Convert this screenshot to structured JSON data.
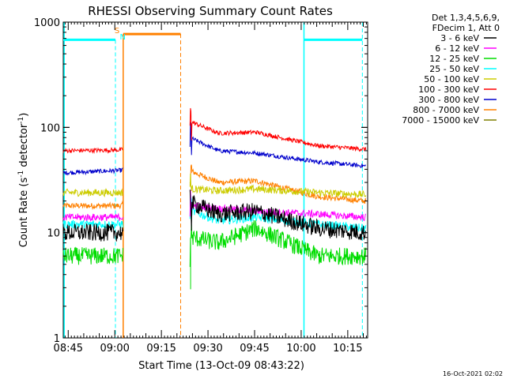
{
  "chart_data": {
    "type": "line",
    "title": "RHESSI Observing Summary Count Rates",
    "xlabel": "Start Time (13-Oct-09 08:43:22)",
    "ylabel_main": "Count Rate (s",
    "ylabel_sup1": "-1",
    "ylabel_mid": " detector",
    "ylabel_sup2": "-1",
    "ylabel_end": ")",
    "yscale": "log",
    "x_unit": "minutes since 08:43:22",
    "xlim": [
      0,
      98
    ],
    "ylim": [
      1,
      1000
    ],
    "x_ticks": [
      {
        "value": 1.6,
        "label": "08:45"
      },
      {
        "value": 16.6,
        "label": "09:00"
      },
      {
        "value": 31.6,
        "label": "09:15"
      },
      {
        "value": 46.6,
        "label": "09:30"
      },
      {
        "value": 61.6,
        "label": "09:45"
      },
      {
        "value": 76.6,
        "label": "10:00"
      },
      {
        "value": 91.6,
        "label": "10:15"
      }
    ],
    "y_ticks": [
      {
        "value": 1,
        "label": "1"
      },
      {
        "value": 10,
        "label": "10"
      },
      {
        "value": 100,
        "label": "100"
      },
      {
        "value": 1000,
        "label": "1000"
      }
    ],
    "legend_header": [
      "Det 1,3,4,5,6,9,",
      "FDecim 1, Att 0"
    ],
    "legend_placement": "right",
    "data_gap": [
      19.3,
      40.8
    ],
    "series": [
      {
        "name": "3 - 6 keV",
        "color": "#000000",
        "levels": [
          10,
          10,
          19,
          15,
          16,
          11,
          10
        ],
        "noise": 0.12
      },
      {
        "name": "6 - 12 keV",
        "color": "#ff00ff",
        "levels": [
          14,
          14,
          18,
          17,
          16,
          15,
          14
        ],
        "noise": 0.05
      },
      {
        "name": "12 - 25 keV",
        "color": "#00dd00",
        "levels": [
          6,
          6,
          9,
          8,
          11,
          6,
          6
        ],
        "noise": 0.12
      },
      {
        "name": "25 - 50 keV",
        "color": "#00ffff",
        "levels": [
          12,
          12,
          16,
          13,
          14,
          12,
          11
        ],
        "noise": 0.06
      },
      {
        "name": "50 - 100 keV",
        "color": "#cccc00",
        "levels": [
          24,
          24,
          26,
          25,
          26,
          24,
          23
        ],
        "noise": 0.05
      },
      {
        "name": "100 - 300 keV",
        "color": "#ff0000",
        "levels": [
          60,
          61,
          112,
          88,
          90,
          67,
          62
        ],
        "noise": 0.03
      },
      {
        "name": "300 - 800 keV",
        "color": "#0000cc",
        "levels": [
          37,
          39,
          78,
          60,
          57,
          47,
          43
        ],
        "noise": 0.03
      },
      {
        "name": "800 - 7000 keV",
        "color": "#ff8000",
        "levels": [
          18,
          18,
          38,
          30,
          31,
          22,
          20
        ],
        "noise": 0.04
      },
      {
        "name": "7000 - 15000 keV",
        "color": "#808000",
        "levels": [],
        "noise": 0
      }
    ],
    "level_x": [
      0,
      18.5,
      41.5,
      50,
      62,
      82,
      97
    ],
    "overlays": [
      {
        "name": "saa",
        "label": "S",
        "color": "#ff8000",
        "x_label": 16.5
      },
      {
        "name": "night",
        "label": "N",
        "color": "#00ffff",
        "x_label": 18.2
      }
    ],
    "footer_date": "16-Oct-2021 02:02"
  }
}
